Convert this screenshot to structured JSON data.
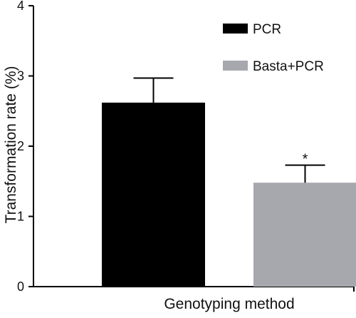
{
  "chart_data": {
    "type": "bar",
    "title": "",
    "xlabel": "Genotyping method",
    "ylabel": "Transformation rate (%)",
    "ylim": [
      0,
      4
    ],
    "yticks": [
      "0",
      "1",
      "2",
      "3",
      "4"
    ],
    "series": [
      {
        "name": "PCR",
        "value": 2.62,
        "error": 0.35,
        "color": "#000000",
        "annotation": ""
      },
      {
        "name": "Basta+PCR",
        "value": 1.48,
        "error": 0.25,
        "color": "#a7a8ad",
        "annotation": "*"
      }
    ],
    "legend_position": "top-right",
    "grid": false
  }
}
